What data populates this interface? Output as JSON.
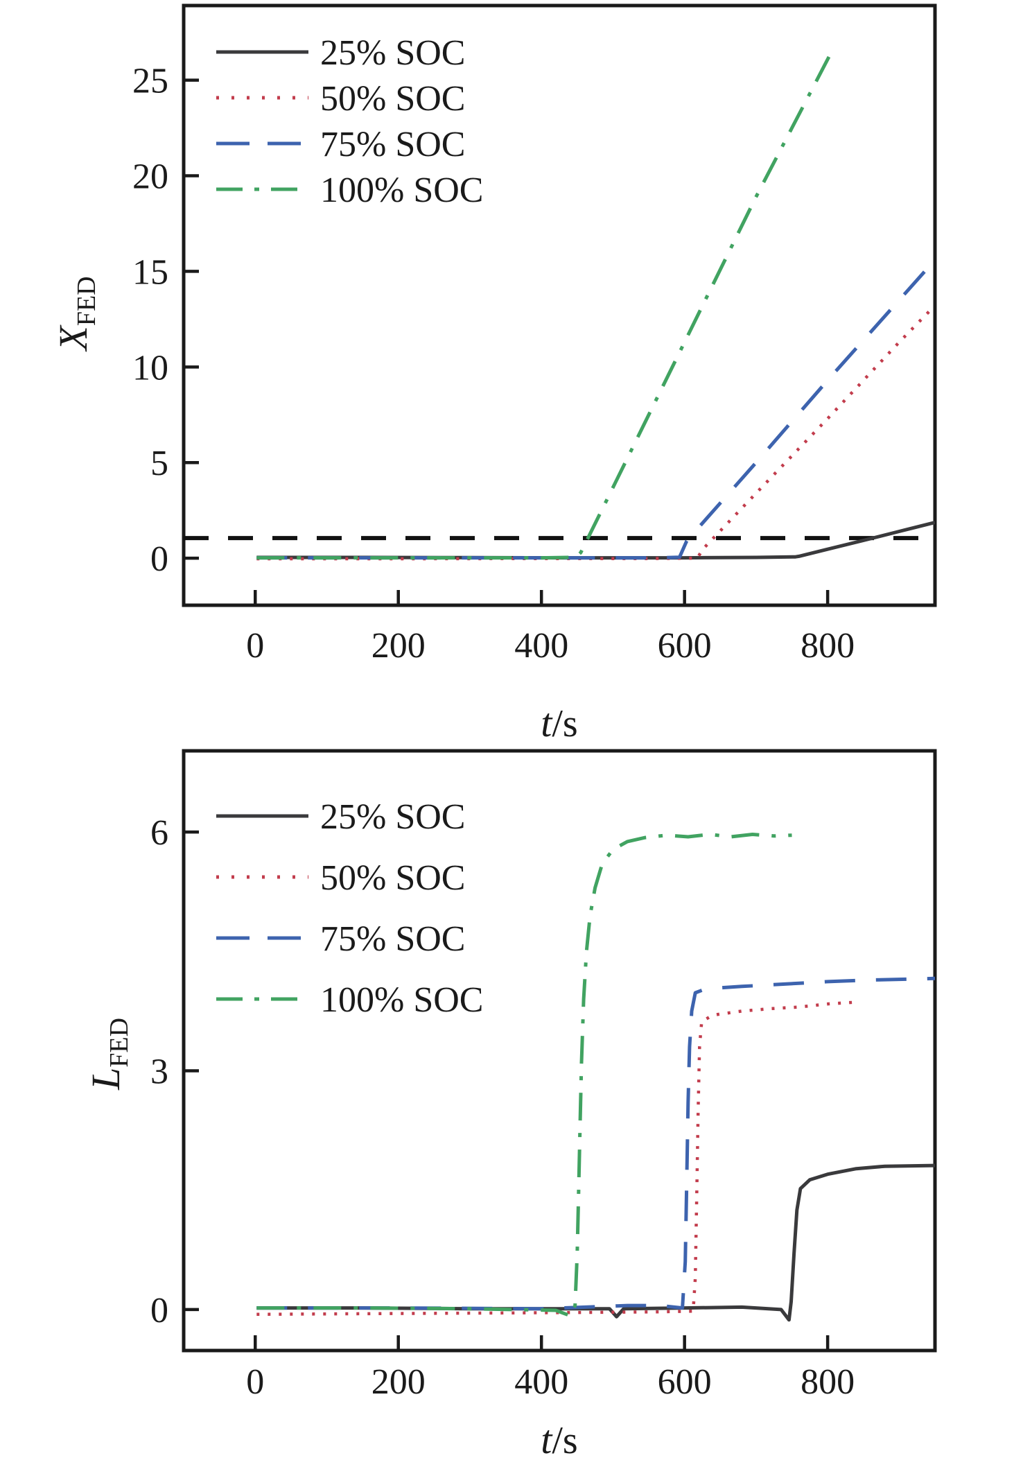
{
  "figure": {
    "background": "#ffffff",
    "axis_color": "#1a1a1a",
    "text_color": "#1a1a1a"
  },
  "chart_data": [
    {
      "id": "top-panel",
      "type": "line",
      "title": "",
      "ylabel_main": "X",
      "ylabel_sub": "FED",
      "xlabel_main": "t",
      "xlabel_unit": "/s",
      "xlim": [
        -100,
        950
      ],
      "ylim": [
        -2.46,
        28.9
      ],
      "x_ticks": [
        0,
        200,
        400,
        600,
        800
      ],
      "y_ticks": [
        0,
        5,
        10,
        15,
        20,
        25
      ],
      "grid": false,
      "legend_position": "upper-left",
      "ref_line": {
        "y": 1.05,
        "color": "#111111",
        "style": "refdash",
        "label": ""
      },
      "series": [
        {
          "label": "25% SOC",
          "color": "#3a3a3c",
          "style": "solid",
          "points": [
            [
              2,
              0.04
            ],
            [
              150,
              0.04
            ],
            [
              300,
              0.03
            ],
            [
              450,
              0.02
            ],
            [
              600,
              0.02
            ],
            [
              700,
              0.04
            ],
            [
              755,
              0.07
            ],
            [
              760,
              0.1
            ],
            [
              800,
              0.47
            ],
            [
              850,
              0.93
            ],
            [
              900,
              1.4
            ],
            [
              950,
              1.87
            ]
          ]
        },
        {
          "label": "50% SOC",
          "color": "#c23c4c",
          "style": "dotted",
          "points": [
            [
              2,
              -0.03
            ],
            [
              200,
              -0.03
            ],
            [
              400,
              -0.02
            ],
            [
              550,
              -0.02
            ],
            [
              618,
              0
            ],
            [
              625,
              0.45
            ],
            [
              700,
              3.4
            ],
            [
              800,
              7.3
            ],
            [
              900,
              11.3
            ],
            [
              947,
              13.1
            ]
          ]
        },
        {
          "label": "75% SOC",
          "color": "#3d63ae",
          "style": "dashed",
          "points": [
            [
              2,
              0.02
            ],
            [
              200,
              0.02
            ],
            [
              400,
              0.02
            ],
            [
              560,
              0.02
            ],
            [
              593,
              0.05
            ],
            [
              603,
              0.9
            ],
            [
              700,
              5.0
            ],
            [
              800,
              9.3
            ],
            [
              900,
              13.5
            ],
            [
              950,
              15.6
            ]
          ]
        },
        {
          "label": "100% SOC",
          "color": "#41a361",
          "style": "dashdot",
          "points": [
            [
              2,
              0.02
            ],
            [
              200,
              0.02
            ],
            [
              400,
              0.02
            ],
            [
              448,
              0.05
            ],
            [
              455,
              0.3
            ],
            [
              500,
              3.7
            ],
            [
              600,
              11.3
            ],
            [
              700,
              18.9
            ],
            [
              803,
              26.3
            ]
          ]
        }
      ]
    },
    {
      "id": "bottom-panel",
      "type": "line",
      "title": "",
      "ylabel_main": "L",
      "ylabel_sub": "FED",
      "xlabel_main": "t",
      "xlabel_unit": "/s",
      "xlim": [
        -100,
        950
      ],
      "ylim": [
        -0.515,
        7.02
      ],
      "x_ticks": [
        0,
        200,
        400,
        600,
        800
      ],
      "y_ticks": [
        0,
        3,
        6
      ],
      "grid": false,
      "legend_position": "upper-left",
      "ref_line": null,
      "series": [
        {
          "label": "25% SOC",
          "color": "#3a3a3c",
          "style": "solid",
          "points": [
            [
              2,
              0.02
            ],
            [
              150,
              0.02
            ],
            [
              300,
              0.01
            ],
            [
              460,
              0.01
            ],
            [
              495,
              0.01
            ],
            [
              505,
              -0.09
            ],
            [
              515,
              0.01
            ],
            [
              600,
              0.02
            ],
            [
              680,
              0.03
            ],
            [
              735,
              0
            ],
            [
              746,
              -0.13
            ],
            [
              749,
              0.1
            ],
            [
              753,
              0.7
            ],
            [
              757,
              1.25
            ],
            [
              762,
              1.52
            ],
            [
              775,
              1.63
            ],
            [
              800,
              1.7
            ],
            [
              840,
              1.77
            ],
            [
              880,
              1.8
            ],
            [
              950,
              1.81
            ]
          ]
        },
        {
          "label": "50% SOC",
          "color": "#c23c4c",
          "style": "dotted",
          "points": [
            [
              2,
              -0.06
            ],
            [
              200,
              -0.05
            ],
            [
              400,
              -0.04
            ],
            [
              560,
              -0.03
            ],
            [
              612,
              -0.02
            ],
            [
              615,
              0.4
            ],
            [
              617,
              1.4
            ],
            [
              619,
              2.5
            ],
            [
              621,
              3.3
            ],
            [
              624,
              3.62
            ],
            [
              640,
              3.7
            ],
            [
              680,
              3.75
            ],
            [
              720,
              3.78
            ],
            [
              760,
              3.8
            ],
            [
              800,
              3.84
            ],
            [
              836,
              3.86
            ]
          ]
        },
        {
          "label": "75% SOC",
          "color": "#3d63ae",
          "style": "dashed",
          "points": [
            [
              2,
              0.02
            ],
            [
              200,
              0.02
            ],
            [
              400,
              0.01
            ],
            [
              520,
              0.05
            ],
            [
              565,
              0.05
            ],
            [
              597,
              0.02
            ],
            [
              601,
              0.6
            ],
            [
              603,
              1.6
            ],
            [
              605,
              2.6
            ],
            [
              607,
              3.3
            ],
            [
              610,
              3.75
            ],
            [
              615,
              3.98
            ],
            [
              630,
              4.03
            ],
            [
              680,
              4.06
            ],
            [
              740,
              4.09
            ],
            [
              800,
              4.12
            ],
            [
              860,
              4.14
            ],
            [
              950,
              4.16
            ]
          ]
        },
        {
          "label": "100% SOC",
          "color": "#41a361",
          "style": "dashdot",
          "points": [
            [
              2,
              0.02
            ],
            [
              150,
              0.02
            ],
            [
              300,
              0.01
            ],
            [
              420,
              -0.01
            ],
            [
              441,
              -0.08
            ],
            [
              447,
              0.05
            ],
            [
              450,
              0.7
            ],
            [
              452,
              1.5
            ],
            [
              454,
              2.3
            ],
            [
              456,
              3.1
            ],
            [
              459,
              3.9
            ],
            [
              463,
              4.5
            ],
            [
              468,
              4.95
            ],
            [
              475,
              5.3
            ],
            [
              485,
              5.6
            ],
            [
              500,
              5.78
            ],
            [
              520,
              5.88
            ],
            [
              545,
              5.93
            ],
            [
              575,
              5.96
            ],
            [
              605,
              5.94
            ],
            [
              635,
              5.97
            ],
            [
              665,
              5.94
            ],
            [
              695,
              5.97
            ],
            [
              725,
              5.95
            ],
            [
              750,
              5.96
            ]
          ]
        }
      ]
    }
  ]
}
